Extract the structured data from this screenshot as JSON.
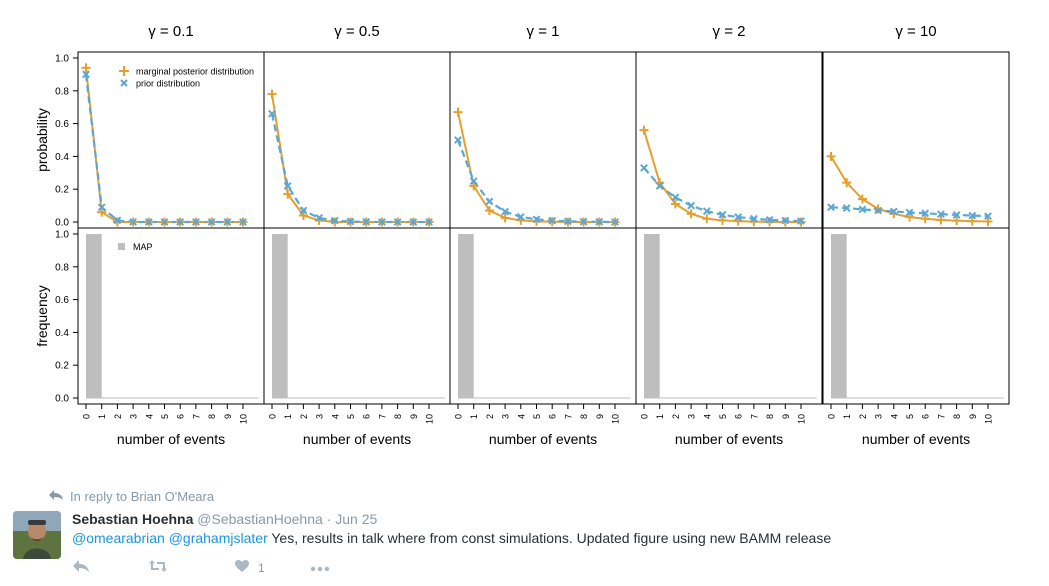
{
  "figure": {
    "panel_titles": [
      "γ = 0.1",
      "γ = 0.5",
      "γ = 1",
      "γ = 2",
      "γ = 10"
    ],
    "top_ylabel": "probability",
    "bottom_ylabel": "frequency",
    "xlabel": "number of events",
    "x_ticks": [
      "0",
      "1",
      "2",
      "3",
      "4",
      "5",
      "6",
      "7",
      "8",
      "9",
      "10"
    ],
    "y_ticks": [
      "0.0",
      "0.2",
      "0.4",
      "0.6",
      "0.8",
      "1.0"
    ],
    "legend_top": [
      "marginal posterior distribution",
      "prior distribution"
    ],
    "legend_bottom": "MAP",
    "colors": {
      "posterior": "#e69f2f",
      "prior": "#5aa7d6",
      "map_bar": "#bebebe"
    }
  },
  "chart_data": [
    {
      "type": "line",
      "title": "γ = 0.1",
      "ylabel": "probability",
      "x": [
        0,
        1,
        2,
        3,
        4,
        5,
        6,
        7,
        8,
        9,
        10
      ],
      "ylim": [
        0,
        1
      ],
      "series": [
        {
          "name": "marginal posterior distribution",
          "values": [
            0.94,
            0.06,
            0.0,
            0.0,
            0.0,
            0.0,
            0.0,
            0.0,
            0.0,
            0.0,
            0.0
          ]
        },
        {
          "name": "prior distribution",
          "values": [
            0.9,
            0.09,
            0.01,
            0.0,
            0.0,
            0.0,
            0.0,
            0.0,
            0.0,
            0.0,
            0.0
          ]
        }
      ]
    },
    {
      "type": "line",
      "title": "γ = 0.5",
      "x": [
        0,
        1,
        2,
        3,
        4,
        5,
        6,
        7,
        8,
        9,
        10
      ],
      "ylim": [
        0,
        1
      ],
      "series": [
        {
          "name": "marginal posterior distribution",
          "values": [
            0.78,
            0.17,
            0.04,
            0.01,
            0.0,
            0.0,
            0.0,
            0.0,
            0.0,
            0.0,
            0.0
          ]
        },
        {
          "name": "prior distribution",
          "values": [
            0.66,
            0.22,
            0.07,
            0.025,
            0.008,
            0.003,
            0.001,
            0.0,
            0.0,
            0.0,
            0.0
          ]
        }
      ]
    },
    {
      "type": "line",
      "title": "γ = 1",
      "x": [
        0,
        1,
        2,
        3,
        4,
        5,
        6,
        7,
        8,
        9,
        10
      ],
      "ylim": [
        0,
        1
      ],
      "series": [
        {
          "name": "marginal posterior distribution",
          "values": [
            0.67,
            0.22,
            0.07,
            0.025,
            0.01,
            0.004,
            0.002,
            0.0,
            0.0,
            0.0,
            0.0
          ]
        },
        {
          "name": "prior distribution",
          "values": [
            0.5,
            0.25,
            0.125,
            0.063,
            0.031,
            0.016,
            0.008,
            0.004,
            0.002,
            0.001,
            0.0
          ]
        }
      ]
    },
    {
      "type": "line",
      "title": "γ = 2",
      "x": [
        0,
        1,
        2,
        3,
        4,
        5,
        6,
        7,
        8,
        9,
        10
      ],
      "ylim": [
        0,
        1
      ],
      "series": [
        {
          "name": "marginal posterior distribution",
          "values": [
            0.56,
            0.24,
            0.11,
            0.05,
            0.02,
            0.01,
            0.005,
            0.002,
            0.001,
            0.0,
            0.0
          ]
        },
        {
          "name": "prior distribution",
          "values": [
            0.33,
            0.22,
            0.15,
            0.1,
            0.066,
            0.044,
            0.03,
            0.02,
            0.013,
            0.009,
            0.006
          ]
        }
      ]
    },
    {
      "type": "line",
      "title": "γ = 10",
      "x": [
        0,
        1,
        2,
        3,
        4,
        5,
        6,
        7,
        8,
        9,
        10
      ],
      "ylim": [
        0,
        1
      ],
      "series": [
        {
          "name": "marginal posterior distribution",
          "values": [
            0.4,
            0.24,
            0.14,
            0.08,
            0.05,
            0.03,
            0.02,
            0.012,
            0.008,
            0.005,
            0.003
          ]
        },
        {
          "name": "prior distribution",
          "values": [
            0.09,
            0.085,
            0.077,
            0.07,
            0.064,
            0.058,
            0.053,
            0.048,
            0.043,
            0.039,
            0.036
          ]
        }
      ]
    },
    {
      "type": "bar",
      "title": "γ = 0.1",
      "ylabel": "frequency",
      "xlabel": "number of events",
      "categories": [
        "0",
        "1",
        "2",
        "3",
        "4",
        "5",
        "6",
        "7",
        "8",
        "9",
        "10"
      ],
      "values": [
        1.0,
        0,
        0,
        0,
        0,
        0,
        0,
        0,
        0,
        0,
        0
      ],
      "ylim": [
        0,
        1
      ],
      "legend": "MAP"
    },
    {
      "type": "bar",
      "title": "γ = 0.5",
      "xlabel": "number of events",
      "categories": [
        "0",
        "1",
        "2",
        "3",
        "4",
        "5",
        "6",
        "7",
        "8",
        "9",
        "10"
      ],
      "values": [
        1.0,
        0,
        0,
        0,
        0,
        0,
        0,
        0,
        0,
        0,
        0
      ],
      "ylim": [
        0,
        1
      ]
    },
    {
      "type": "bar",
      "title": "γ = 1",
      "xlabel": "number of events",
      "categories": [
        "0",
        "1",
        "2",
        "3",
        "4",
        "5",
        "6",
        "7",
        "8",
        "9",
        "10"
      ],
      "values": [
        1.0,
        0,
        0,
        0,
        0,
        0,
        0,
        0,
        0,
        0,
        0
      ],
      "ylim": [
        0,
        1
      ]
    },
    {
      "type": "bar",
      "title": "γ = 2",
      "xlabel": "number of events",
      "categories": [
        "0",
        "1",
        "2",
        "3",
        "4",
        "5",
        "6",
        "7",
        "8",
        "9",
        "10"
      ],
      "values": [
        1.0,
        0,
        0,
        0,
        0,
        0,
        0,
        0,
        0,
        0,
        0
      ],
      "ylim": [
        0,
        1
      ]
    },
    {
      "type": "bar",
      "title": "γ = 10",
      "xlabel": "number of events",
      "categories": [
        "0",
        "1",
        "2",
        "3",
        "4",
        "5",
        "6",
        "7",
        "8",
        "9",
        "10"
      ],
      "values": [
        1.0,
        0,
        0,
        0,
        0,
        0,
        0,
        0,
        0,
        0,
        0
      ],
      "ylim": [
        0,
        1
      ]
    }
  ],
  "tweet": {
    "reply_to": "In reply to Brian O'Meara",
    "author_name": "Sebastian Hoehna",
    "author_handle": "@SebastianHoehna",
    "separator": "·",
    "date": "Jun 25",
    "mention_1": "@omearabrian",
    "mention_2": "@grahamjslater",
    "text": "Yes, results in talk where from const simulations. Updated figure using new BAMM release",
    "like_count": "1",
    "icons": [
      "reply-icon",
      "retweet-icon",
      "heart-icon",
      "more-icon"
    ]
  }
}
